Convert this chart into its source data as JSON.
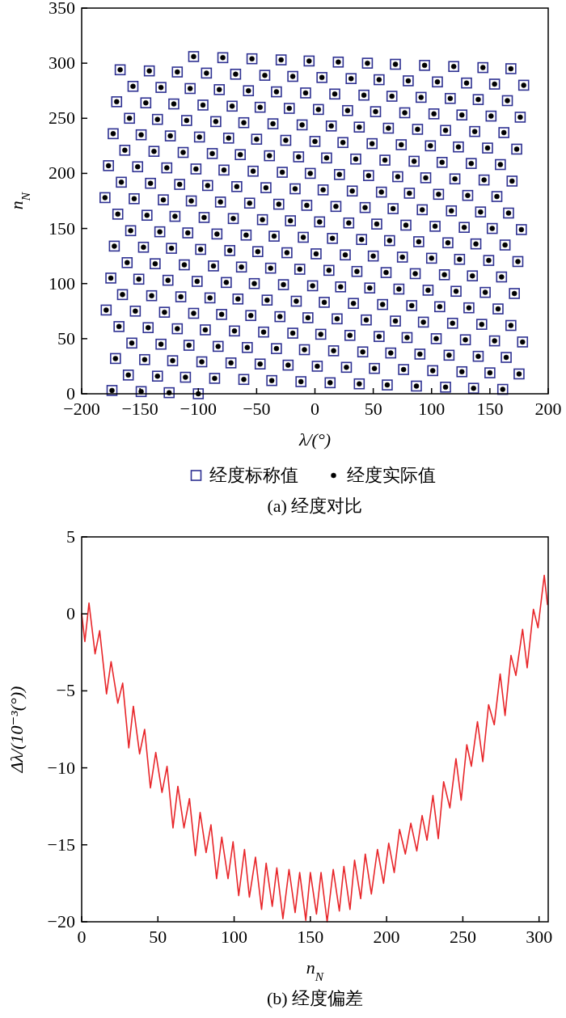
{
  "chart_data": [
    {
      "type": "scatter",
      "title": "(a) 经度对比",
      "xlabel": "λ/(°)",
      "ylabel": "n$_{N}$",
      "xlim": [
        -200,
        200
      ],
      "xticks": [
        {
          "value": -200,
          "label": "−200"
        },
        {
          "value": -150,
          "label": "−150"
        },
        {
          "value": -100,
          "label": "−100"
        },
        {
          "value": -50,
          "label": "−50"
        },
        0,
        50,
        100,
        150,
        200
      ],
      "ylim": [
        0,
        350
      ],
      "yticks": [
        0,
        50,
        100,
        150,
        200,
        250,
        300,
        350
      ],
      "legend": "bottom",
      "series": [
        {
          "name": "经度标称值",
          "color": "#2e3192",
          "marker": "square",
          "x": [
            -100,
            -125,
            -149,
            -174,
            161,
            136,
            112,
            87,
            62,
            38,
            13,
            -12,
            -37,
            -61,
            -86,
            -111,
            -135,
            -160,
            175,
            150,
            126,
            101,
            76,
            51,
            27,
            2,
            -23,
            -47,
            -72,
            -97,
            -122,
            -146,
            -171,
            164,
            140,
            115,
            90,
            65,
            41,
            16,
            -9,
            -33,
            -58,
            -83,
            -108,
            -132,
            -157,
            178,
            154,
            129,
            104,
            79,
            55,
            30,
            5,
            -19,
            -44,
            -69,
            -94,
            -118,
            -143,
            -168,
            168,
            143,
            118,
            93,
            69,
            44,
            19,
            -6,
            -30,
            -55,
            -80,
            -104,
            -129,
            -154,
            -179,
            157,
            132,
            107,
            83,
            58,
            33,
            8,
            -16,
            -41,
            -66,
            -90,
            -115,
            -140,
            -165,
            171,
            146,
            121,
            97,
            72,
            47,
            22,
            -2,
            -27,
            -52,
            -76,
            -101,
            -126,
            -151,
            -175,
            160,
            135,
            111,
            86,
            61,
            36,
            12,
            -13,
            -38,
            -63,
            -87,
            -112,
            -137,
            -161,
            174,
            149,
            124,
            100,
            75,
            50,
            26,
            1,
            -24,
            -49,
            -73,
            -98,
            -123,
            -147,
            -172,
            163,
            138,
            114,
            89,
            64,
            40,
            15,
            -10,
            -35,
            -59,
            -84,
            -109,
            -133,
            -158,
            177,
            152,
            128,
            103,
            78,
            53,
            29,
            4,
            -21,
            -45,
            -70,
            -95,
            -120,
            -144,
            -169,
            166,
            142,
            117,
            92,
            67,
            43,
            18,
            -7,
            -31,
            -56,
            -81,
            -106,
            -130,
            -155,
            -180,
            156,
            131,
            106,
            81,
            57,
            32,
            7,
            -17,
            -42,
            -67,
            -92,
            -116,
            -141,
            -166,
            169,
            145,
            120,
            95,
            71,
            46,
            21,
            -4,
            -28,
            -53,
            -78,
            -102,
            -127,
            -152,
            -177,
            159,
            134,
            109,
            85,
            60,
            35,
            10,
            -14,
            -39,
            -64,
            -88,
            -113,
            -138,
            -163,
            173,
            148,
            123,
            99,
            74,
            49,
            24,
            0,
            -25,
            -50,
            -74,
            -99,
            -124,
            -149,
            -173,
            162,
            137,
            112,
            88,
            63,
            38,
            14,
            -11,
            -36,
            -61,
            -85,
            -110,
            -135,
            -159,
            176,
            151,
            126,
            102,
            77,
            52,
            28,
            3,
            -22,
            -47,
            -71,
            -96,
            -121,
            -145,
            -170,
            165,
            140,
            116,
            91,
            66,
            42,
            17,
            -8,
            -33,
            -57,
            -82,
            -107,
            -132,
            -156,
            179,
            154,
            130,
            105,
            80,
            55,
            31,
            6,
            -19,
            -43,
            -68,
            -93,
            -118,
            -142,
            -167,
            168,
            144,
            119,
            94,
            69,
            45,
            20,
            -5,
            -29,
            -54,
            -79,
            -104
          ],
          "values": [
            0,
            1,
            2,
            3,
            4,
            5,
            6,
            7,
            8,
            9,
            10,
            11,
            12,
            13,
            14,
            15,
            16,
            17,
            18,
            19,
            20,
            21,
            22,
            23,
            24,
            25,
            26,
            27,
            28,
            29,
            30,
            31,
            32,
            33,
            34,
            35,
            36,
            37,
            38,
            39,
            40,
            41,
            42,
            43,
            44,
            45,
            46,
            47,
            48,
            49,
            50,
            51,
            52,
            53,
            54,
            55,
            56,
            57,
            58,
            59,
            60,
            61,
            62,
            63,
            64,
            65,
            66,
            67,
            68,
            69,
            70,
            71,
            72,
            73,
            74,
            75,
            76,
            77,
            78,
            79,
            80,
            81,
            82,
            83,
            84,
            85,
            86,
            87,
            88,
            89,
            90,
            91,
            92,
            93,
            94,
            95,
            96,
            97,
            98,
            99,
            100,
            101,
            102,
            103,
            104,
            105,
            106,
            107,
            108,
            109,
            110,
            111,
            112,
            113,
            114,
            115,
            116,
            117,
            118,
            119,
            120,
            121,
            122,
            123,
            124,
            125,
            126,
            127,
            128,
            129,
            130,
            131,
            132,
            133,
            134,
            135,
            136,
            137,
            138,
            139,
            140,
            141,
            142,
            143,
            144,
            145,
            146,
            147,
            148,
            149,
            150,
            151,
            152,
            153,
            154,
            155,
            156,
            157,
            158,
            159,
            160,
            161,
            162,
            163,
            164,
            165,
            166,
            167,
            168,
            169,
            170,
            171,
            172,
            173,
            174,
            175,
            176,
            177,
            178,
            179,
            180,
            181,
            182,
            183,
            184,
            185,
            186,
            187,
            188,
            189,
            190,
            191,
            192,
            193,
            194,
            195,
            196,
            197,
            198,
            199,
            200,
            201,
            202,
            203,
            204,
            205,
            206,
            207,
            208,
            209,
            210,
            211,
            212,
            213,
            214,
            215,
            216,
            217,
            218,
            219,
            220,
            221,
            222,
            223,
            224,
            225,
            226,
            227,
            228,
            229,
            230,
            231,
            232,
            233,
            234,
            235,
            236,
            237,
            238,
            239,
            240,
            241,
            242,
            243,
            244,
            245,
            246,
            247,
            248,
            249,
            250,
            251,
            252,
            253,
            254,
            255,
            256,
            257,
            258,
            259,
            260,
            261,
            262,
            263,
            264,
            265,
            266,
            267,
            268,
            269,
            270,
            271,
            272,
            273,
            274,
            275,
            276,
            277,
            278,
            279,
            280,
            281,
            282,
            283,
            284,
            285,
            286,
            287,
            288,
            289,
            290,
            291,
            292,
            293,
            294,
            295,
            296,
            297,
            298,
            299,
            300,
            301,
            302,
            303,
            304,
            305,
            306
          ]
        },
        {
          "name": "经度实际值",
          "color": "#000000",
          "marker": "circle",
          "x": [
            -100,
            -125,
            -149,
            -174,
            161,
            136,
            112,
            87,
            62,
            38,
            13,
            -12,
            -37,
            -61,
            -86,
            -111,
            -135,
            -160,
            175,
            150,
            126,
            101,
            76,
            51,
            27,
            2,
            -23,
            -47,
            -72,
            -97,
            -122,
            -146,
            -171,
            164,
            140,
            115,
            90,
            65,
            41,
            16,
            -9,
            -33,
            -58,
            -83,
            -108,
            -132,
            -157,
            178,
            154,
            129,
            104,
            79,
            55,
            30,
            5,
            -19,
            -44,
            -69,
            -94,
            -118,
            -143,
            -168,
            168,
            143,
            118,
            93,
            69,
            44,
            19,
            -6,
            -30,
            -55,
            -80,
            -104,
            -129,
            -154,
            -179,
            157,
            132,
            107,
            83,
            58,
            33,
            8,
            -16,
            -41,
            -66,
            -90,
            -115,
            -140,
            -165,
            171,
            146,
            121,
            97,
            72,
            47,
            22,
            -2,
            -27,
            -52,
            -76,
            -101,
            -126,
            -151,
            -175,
            160,
            135,
            111,
            86,
            61,
            36,
            12,
            -13,
            -38,
            -63,
            -87,
            -112,
            -137,
            -161,
            174,
            149,
            124,
            100,
            75,
            50,
            26,
            1,
            -24,
            -49,
            -73,
            -98,
            -123,
            -147,
            -172,
            163,
            138,
            114,
            89,
            64,
            40,
            15,
            -10,
            -35,
            -59,
            -84,
            -109,
            -133,
            -158,
            177,
            152,
            128,
            103,
            78,
            53,
            29,
            4,
            -21,
            -45,
            -70,
            -95,
            -120,
            -144,
            -169,
            166,
            142,
            117,
            92,
            67,
            43,
            18,
            -7,
            -31,
            -56,
            -81,
            -106,
            -130,
            -155,
            -180,
            156,
            131,
            106,
            81,
            57,
            32,
            7,
            -17,
            -42,
            -67,
            -92,
            -116,
            -141,
            -166,
            169,
            145,
            120,
            95,
            71,
            46,
            21,
            -4,
            -28,
            -53,
            -78,
            -102,
            -127,
            -152,
            -177,
            159,
            134,
            109,
            85,
            60,
            35,
            10,
            -14,
            -39,
            -64,
            -88,
            -113,
            -138,
            -163,
            173,
            148,
            123,
            99,
            74,
            49,
            24,
            0,
            -25,
            -50,
            -74,
            -99,
            -124,
            -149,
            -173,
            162,
            137,
            112,
            88,
            63,
            38,
            14,
            -11,
            -36,
            -61,
            -85,
            -110,
            -135,
            -159,
            176,
            151,
            126,
            102,
            77,
            52,
            28,
            3,
            -22,
            -47,
            -71,
            -96,
            -121,
            -145,
            -170,
            165,
            140,
            116,
            91,
            66,
            42,
            17,
            -8,
            -33,
            -57,
            -82,
            -107,
            -132,
            -156,
            179,
            154,
            130,
            105,
            80,
            55,
            31,
            6,
            -19,
            -43,
            -68,
            -93,
            -118,
            -142,
            -167,
            168,
            144,
            119,
            94,
            69,
            45,
            20,
            -5,
            -29,
            -54,
            -79,
            -104
          ],
          "values": [
            0,
            1,
            2,
            3,
            4,
            5,
            6,
            7,
            8,
            9,
            10,
            11,
            12,
            13,
            14,
            15,
            16,
            17,
            18,
            19,
            20,
            21,
            22,
            23,
            24,
            25,
            26,
            27,
            28,
            29,
            30,
            31,
            32,
            33,
            34,
            35,
            36,
            37,
            38,
            39,
            40,
            41,
            42,
            43,
            44,
            45,
            46,
            47,
            48,
            49,
            50,
            51,
            52,
            53,
            54,
            55,
            56,
            57,
            58,
            59,
            60,
            61,
            62,
            63,
            64,
            65,
            66,
            67,
            68,
            69,
            70,
            71,
            72,
            73,
            74,
            75,
            76,
            77,
            78,
            79,
            80,
            81,
            82,
            83,
            84,
            85,
            86,
            87,
            88,
            89,
            90,
            91,
            92,
            93,
            94,
            95,
            96,
            97,
            98,
            99,
            100,
            101,
            102,
            103,
            104,
            105,
            106,
            107,
            108,
            109,
            110,
            111,
            112,
            113,
            114,
            115,
            116,
            117,
            118,
            119,
            120,
            121,
            122,
            123,
            124,
            125,
            126,
            127,
            128,
            129,
            130,
            131,
            132,
            133,
            134,
            135,
            136,
            137,
            138,
            139,
            140,
            141,
            142,
            143,
            144,
            145,
            146,
            147,
            148,
            149,
            150,
            151,
            152,
            153,
            154,
            155,
            156,
            157,
            158,
            159,
            160,
            161,
            162,
            163,
            164,
            165,
            166,
            167,
            168,
            169,
            170,
            171,
            172,
            173,
            174,
            175,
            176,
            177,
            178,
            179,
            180,
            181,
            182,
            183,
            184,
            185,
            186,
            187,
            188,
            189,
            190,
            191,
            192,
            193,
            194,
            195,
            196,
            197,
            198,
            199,
            200,
            201,
            202,
            203,
            204,
            205,
            206,
            207,
            208,
            209,
            210,
            211,
            212,
            213,
            214,
            215,
            216,
            217,
            218,
            219,
            220,
            221,
            222,
            223,
            224,
            225,
            226,
            227,
            228,
            229,
            230,
            231,
            232,
            233,
            234,
            235,
            236,
            237,
            238,
            239,
            240,
            241,
            242,
            243,
            244,
            245,
            246,
            247,
            248,
            249,
            250,
            251,
            252,
            253,
            254,
            255,
            256,
            257,
            258,
            259,
            260,
            261,
            262,
            263,
            264,
            265,
            266,
            267,
            268,
            269,
            270,
            271,
            272,
            273,
            274,
            275,
            276,
            277,
            278,
            279,
            280,
            281,
            282,
            283,
            284,
            285,
            286,
            287,
            288,
            289,
            290,
            291,
            292,
            293,
            294,
            295,
            296,
            297,
            298,
            299,
            300,
            301,
            302,
            303,
            304,
            305,
            306
          ]
        }
      ]
    },
    {
      "type": "line",
      "title": "(b) 经度偏差",
      "xlabel": "n$_{N}$",
      "ylabel": "Δλ/(10⁻³(°))",
      "xlim": [
        0,
        306
      ],
      "xticks": [
        0,
        50,
        100,
        150,
        200,
        250,
        300
      ],
      "ylim": [
        -20,
        5
      ],
      "yticks": [
        {
          "value": -20,
          "label": "−20"
        },
        {
          "value": -15,
          "label": "−15"
        },
        {
          "value": -10,
          "label": "−10"
        },
        {
          "value": -5,
          "label": "−5"
        },
        0,
        5
      ],
      "series": [
        {
          "color": "#e8262a",
          "x": [
            0,
            2.1,
            4.8,
            8.8,
            11.8,
            16.3,
            19.3,
            23.7,
            26.9,
            30.9,
            33.9,
            38.0,
            41.3,
            45.1,
            48.6,
            52.7,
            56.0,
            59.9,
            63.1,
            67.1,
            70.7,
            74.6,
            77.7,
            81.6,
            84.8,
            88.5,
            91.9,
            96,
            99.3,
            103,
            106.8,
            110,
            114,
            118,
            121,
            125,
            128,
            132,
            136,
            140,
            143,
            147,
            150,
            154,
            157,
            161,
            165,
            169,
            172,
            176,
            179,
            183,
            186,
            190,
            194,
            198,
            201.4,
            205,
            208.5,
            212.3,
            215.9,
            219.8,
            223.3,
            226.5,
            230.4,
            233.9,
            237.4,
            241.5,
            245.5,
            248.9,
            252.6,
            255.6,
            259.6,
            263.1,
            266.9,
            270.6,
            274.5,
            277.7,
            281.6,
            284.8,
            289.2,
            292.2,
            296.3,
            299.3,
            303.4,
            305.5
          ],
          "values": [
            0.0,
            -1.8,
            0.7,
            -2.6,
            -1.1,
            -5.2,
            -3.1,
            -5.8,
            -4.5,
            -8.7,
            -6.0,
            -9.1,
            -7.5,
            -11.3,
            -9.0,
            -11.6,
            -9.9,
            -13.9,
            -11.2,
            -13.9,
            -12.0,
            -15.7,
            -12.9,
            -15.5,
            -13.7,
            -17.2,
            -14.5,
            -17.2,
            -14.8,
            -18.3,
            -15.3,
            -18.4,
            -15.8,
            -19.2,
            -16.2,
            -19.0,
            -16.5,
            -19.8,
            -16.6,
            -19.4,
            -16.8,
            -19.9,
            -16.8,
            -19.5,
            -16.8,
            -20.0,
            -16.6,
            -19.3,
            -16.4,
            -19.2,
            -16.0,
            -18.5,
            -15.6,
            -18.2,
            -15.3,
            -17.5,
            -14.9,
            -16.8,
            -14.0,
            -15.6,
            -13.6,
            -15.4,
            -13.1,
            -14.7,
            -11.8,
            -14.6,
            -10.9,
            -12.6,
            -9.4,
            -12.1,
            -8.5,
            -9.9,
            -7.0,
            -9.6,
            -5.9,
            -7.2,
            -3.9,
            -6.6,
            -2.7,
            -4.0,
            -1.0,
            -3.5,
            0.3,
            -0.9,
            2.5,
            0.6
          ]
        }
      ]
    }
  ]
}
